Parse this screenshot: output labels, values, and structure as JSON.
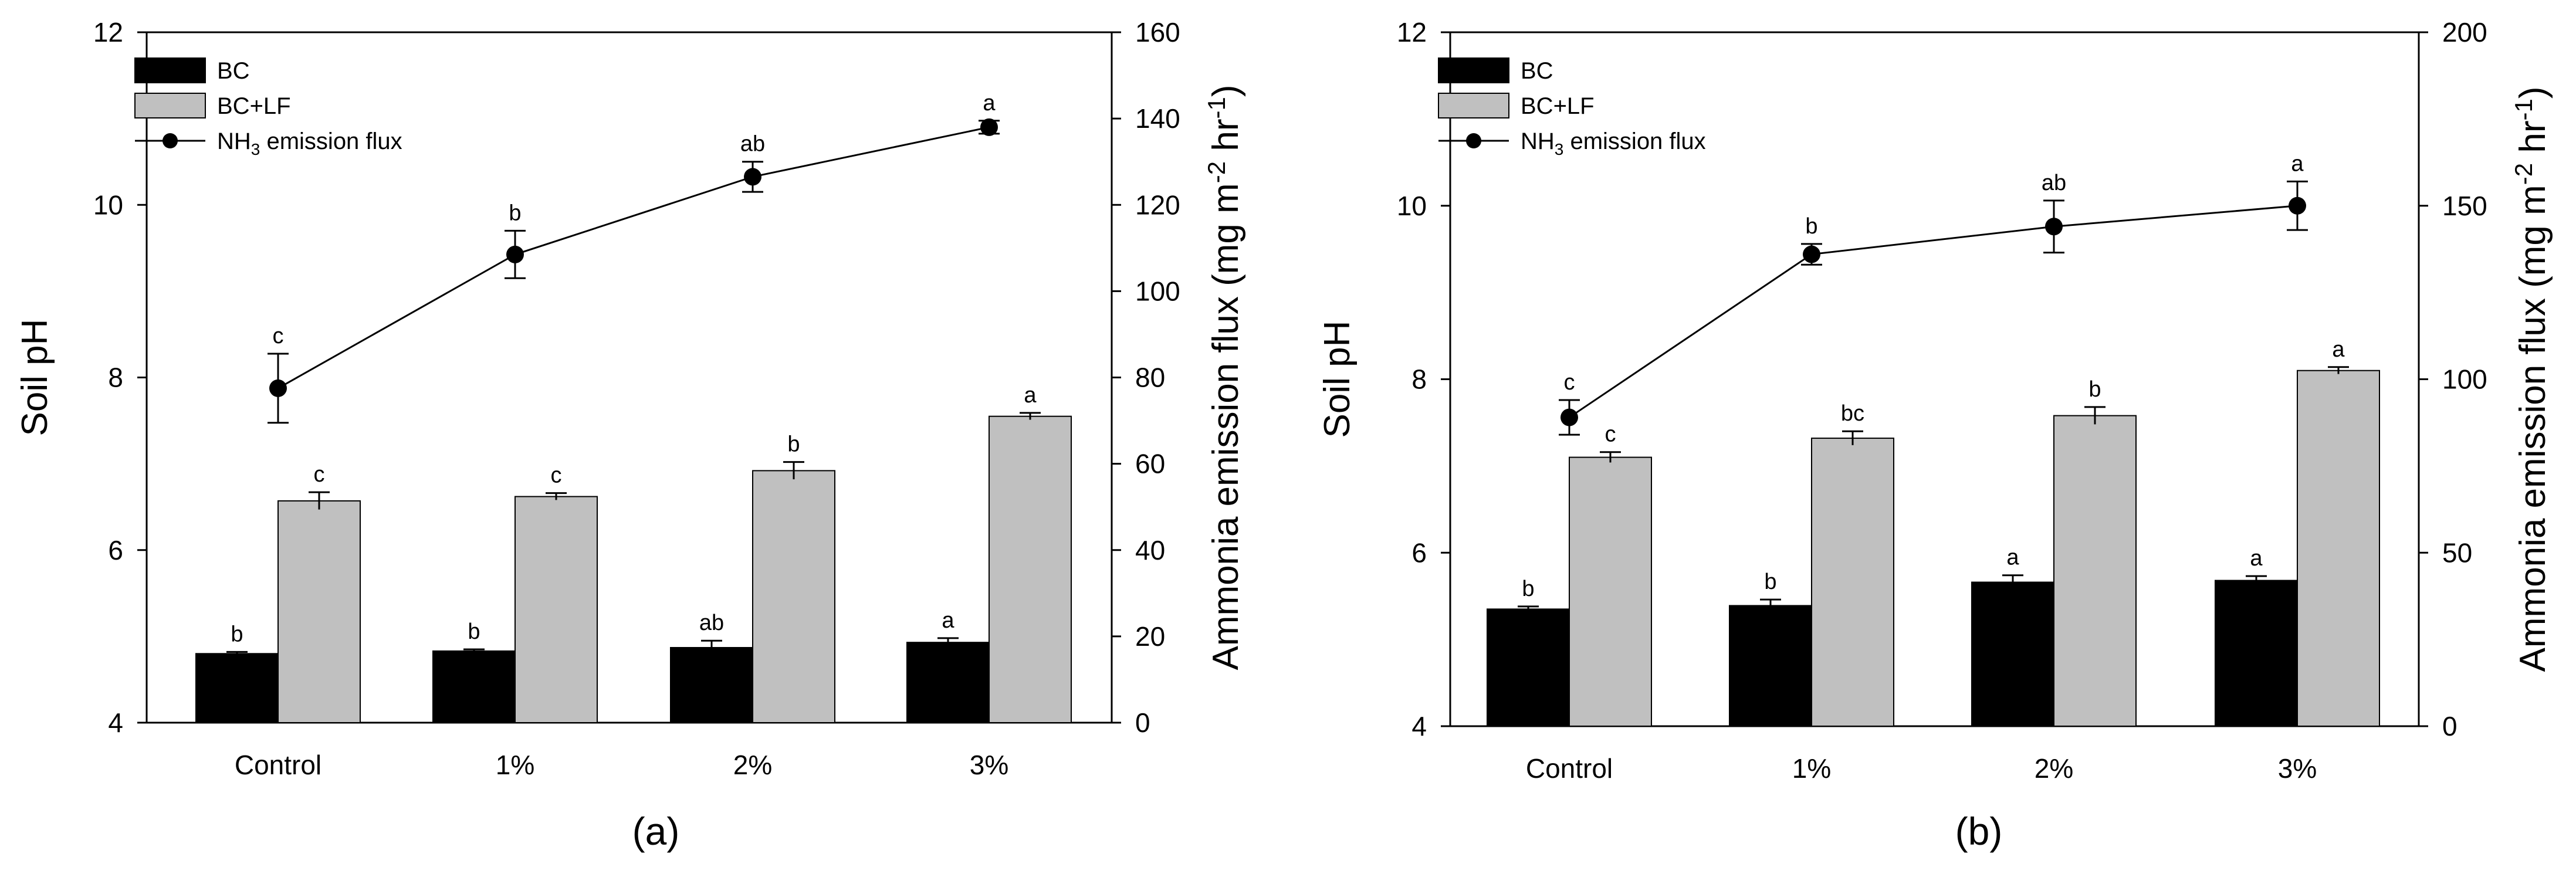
{
  "chart_data": [
    {
      "type": "bar",
      "panel_label": "(a)",
      "categories": [
        "Control",
        "1%",
        "2%",
        "3%"
      ],
      "ylabel": "Soil pH",
      "ylim": [
        4,
        12
      ],
      "yticks": [
        4,
        6,
        8,
        10,
        12
      ],
      "y2label": "Ammonia emission flux (mg m-2 hr-1)",
      "y2label_parts": {
        "main": "Ammonia emission flux (mg m",
        "exp1": "-2",
        "mid": " hr",
        "exp2": "-1",
        "close": ")"
      },
      "y2lim": [
        0,
        160
      ],
      "y2ticks": [
        0,
        20,
        40,
        60,
        80,
        100,
        120,
        140,
        160
      ],
      "legend": [
        "BC",
        "BC+LF",
        "NH3 emission flux"
      ],
      "legend_parts": {
        "bc": "BC",
        "bclf": "BC+LF",
        "flux_pre": "NH",
        "flux_sub": "3",
        "flux_post": " emission flux"
      },
      "series": [
        {
          "name": "BC",
          "color": "#000000",
          "axis": "left",
          "values": [
            4.8,
            4.83,
            4.87,
            4.93
          ],
          "errors": [
            0.02,
            0.02,
            0.08,
            0.05
          ],
          "letters": [
            "b",
            "b",
            "ab",
            "a"
          ]
        },
        {
          "name": "BC+LF",
          "color": "#c0c0c0",
          "axis": "left",
          "values": [
            6.57,
            6.62,
            6.92,
            7.55
          ],
          "errors": [
            0.1,
            0.04,
            0.1,
            0.04
          ],
          "letters": [
            "c",
            "c",
            "b",
            "a"
          ]
        },
        {
          "name": "NH3 emission flux",
          "color": "#000000",
          "axis": "right",
          "kind": "line",
          "values": [
            77.5,
            108.5,
            126.5,
            138
          ],
          "errors": [
            8,
            5.5,
            3.5,
            1.5
          ],
          "letters": [
            "c",
            "b",
            "ab",
            "a"
          ]
        }
      ]
    },
    {
      "type": "bar",
      "panel_label": "(b)",
      "categories": [
        "Control",
        "1%",
        "2%",
        "3%"
      ],
      "ylabel": "Soil pH",
      "ylim": [
        4,
        12
      ],
      "yticks": [
        4,
        6,
        8,
        10,
        12
      ],
      "y2label": "Ammonia emission flux (mg m-2 hr-1)",
      "y2label_parts": {
        "main": "Ammonia emission flux (mg m",
        "exp1": "-2",
        "mid": " hr",
        "exp2": "-1",
        "close": ")"
      },
      "y2lim": [
        0,
        200
      ],
      "y2ticks": [
        0,
        50,
        100,
        150,
        200
      ],
      "legend": [
        "BC",
        "BC+LF",
        "NH3 emission flux"
      ],
      "legend_parts": {
        "bc": "BC",
        "bclf": "BC+LF",
        "flux_pre": "NH",
        "flux_sub": "3",
        "flux_post": " emission flux"
      },
      "series": [
        {
          "name": "BC",
          "color": "#000000",
          "axis": "left",
          "values": [
            5.35,
            5.39,
            5.66,
            5.68
          ],
          "errors": [
            0.03,
            0.07,
            0.08,
            0.05
          ],
          "letters": [
            "b",
            "b",
            "a",
            "a"
          ]
        },
        {
          "name": "BC+LF",
          "color": "#c0c0c0",
          "axis": "left",
          "values": [
            7.1,
            7.32,
            7.58,
            8.1
          ],
          "errors": [
            0.06,
            0.08,
            0.1,
            0.04
          ],
          "letters": [
            "c",
            "bc",
            "b",
            "a"
          ]
        },
        {
          "name": "NH3 emission flux",
          "color": "#000000",
          "axis": "right",
          "kind": "line",
          "values": [
            89,
            136,
            144,
            150
          ],
          "errors": [
            5,
            3,
            7.5,
            7
          ],
          "letters": [
            "c",
            "b",
            "ab",
            "a"
          ]
        }
      ]
    }
  ]
}
